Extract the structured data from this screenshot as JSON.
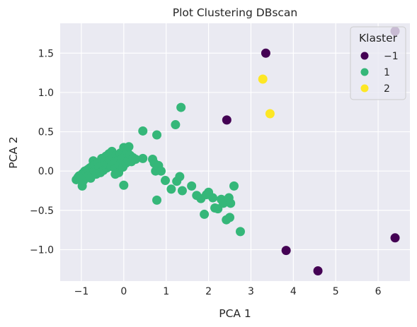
{
  "chart_data": {
    "type": "scatter",
    "title": "Plot Clustering DBscan",
    "xlabel": "PCA 1",
    "ylabel": "PCA 2",
    "xlim": [
      -1.5,
      6.75
    ],
    "ylim": [
      -1.4,
      1.88
    ],
    "xticks": [
      -1,
      0,
      1,
      2,
      3,
      4,
      5,
      6
    ],
    "yticks": [
      -1.0,
      -0.5,
      0.0,
      0.5,
      1.0,
      1.5
    ],
    "xtick_labels": [
      "−1",
      "0",
      "1",
      "2",
      "3",
      "4",
      "5",
      "6"
    ],
    "ytick_labels": [
      "−1.0",
      "−0.5",
      "0.0",
      "0.5",
      "1.0",
      "1.5"
    ],
    "grid": true,
    "legend": {
      "title": "Klaster",
      "position": "top-right",
      "entries": [
        {
          "label": "−1",
          "color": "#440154"
        },
        {
          "label": "1",
          "color": "#35b779"
        },
        {
          "label": "2",
          "color": "#fde725"
        }
      ]
    },
    "series": [
      {
        "name": "−1",
        "color": "#440154",
        "points": [
          [
            6.4,
            1.78
          ],
          [
            3.35,
            1.5
          ],
          [
            2.43,
            0.65
          ],
          [
            6.4,
            -0.85
          ],
          [
            3.83,
            -1.01
          ],
          [
            4.58,
            -1.27
          ]
        ]
      },
      {
        "name": "1",
        "color": "#35b779",
        "points": [
          [
            -1.12,
            -0.11
          ],
          [
            -1.08,
            -0.08
          ],
          [
            -1.05,
            -0.06
          ],
          [
            -1.02,
            -0.1
          ],
          [
            -0.98,
            -0.19
          ],
          [
            -0.97,
            -0.03
          ],
          [
            -0.95,
            -0.12
          ],
          [
            -0.92,
            0.0
          ],
          [
            -0.9,
            -0.07
          ],
          [
            -0.88,
            -0.02
          ],
          [
            -0.85,
            0.02
          ],
          [
            -0.82,
            -0.05
          ],
          [
            -0.8,
            0.04
          ],
          [
            -0.78,
            -0.09
          ],
          [
            -0.75,
            0.06
          ],
          [
            -0.72,
            0.13
          ],
          [
            -0.7,
            0.0
          ],
          [
            -0.68,
            0.08
          ],
          [
            -0.65,
            -0.04
          ],
          [
            -0.62,
            0.03
          ],
          [
            -0.6,
            0.11
          ],
          [
            -0.58,
            0.05
          ],
          [
            -0.55,
            -0.02
          ],
          [
            -0.52,
            0.16
          ],
          [
            -0.5,
            0.07
          ],
          [
            -0.48,
            0.01
          ],
          [
            -0.45,
            0.12
          ],
          [
            -0.42,
            0.19
          ],
          [
            -0.4,
            0.04
          ],
          [
            -0.38,
            0.09
          ],
          [
            -0.35,
            0.22
          ],
          [
            -0.32,
            0.14
          ],
          [
            -0.3,
            0.06
          ],
          [
            -0.28,
            0.25
          ],
          [
            -0.25,
            0.18
          ],
          [
            -0.22,
            0.1
          ],
          [
            -0.2,
            0.03
          ],
          [
            -0.18,
            0.2
          ],
          [
            -0.15,
            0.13
          ],
          [
            -0.12,
            -0.02
          ],
          [
            -0.1,
            0.08
          ],
          [
            -0.08,
            0.23
          ],
          [
            -0.05,
            0.15
          ],
          [
            -0.02,
            0.05
          ],
          [
            0.0,
            0.3
          ],
          [
            0.02,
            0.18
          ],
          [
            0.05,
            0.1
          ],
          [
            0.08,
            0.25
          ],
          [
            0.1,
            0.14
          ],
          [
            0.12,
            0.31
          ],
          [
            0.15,
            0.2
          ],
          [
            0.18,
            0.12
          ],
          [
            0.22,
            0.17
          ],
          [
            0.28,
            0.15
          ],
          [
            -0.2,
            -0.04
          ],
          [
            0.0,
            -0.18
          ],
          [
            0.45,
            0.51
          ],
          [
            0.45,
            0.16
          ],
          [
            0.68,
            0.15
          ],
          [
            0.72,
            0.1
          ],
          [
            0.75,
            0.0
          ],
          [
            0.78,
            0.46
          ],
          [
            0.78,
            -0.37
          ],
          [
            0.82,
            0.07
          ],
          [
            0.88,
            0.0
          ],
          [
            0.98,
            -0.12
          ],
          [
            1.12,
            -0.23
          ],
          [
            1.22,
            0.59
          ],
          [
            1.25,
            -0.13
          ],
          [
            1.32,
            -0.07
          ],
          [
            1.35,
            0.81
          ],
          [
            1.38,
            -0.25
          ],
          [
            1.6,
            -0.19
          ],
          [
            1.72,
            -0.31
          ],
          [
            1.82,
            -0.35
          ],
          [
            1.9,
            -0.55
          ],
          [
            1.95,
            -0.3
          ],
          [
            2.0,
            -0.27
          ],
          [
            2.1,
            -0.34
          ],
          [
            2.15,
            -0.47
          ],
          [
            2.22,
            -0.48
          ],
          [
            2.3,
            -0.36
          ],
          [
            2.35,
            -0.41
          ],
          [
            2.42,
            -0.62
          ],
          [
            2.48,
            -0.34
          ],
          [
            2.5,
            -0.59
          ],
          [
            2.52,
            -0.41
          ],
          [
            2.6,
            -0.19
          ],
          [
            2.75,
            -0.77
          ]
        ]
      },
      {
        "name": "2",
        "color": "#fde725",
        "points": [
          [
            3.28,
            1.17
          ],
          [
            3.45,
            0.73
          ]
        ]
      }
    ]
  }
}
